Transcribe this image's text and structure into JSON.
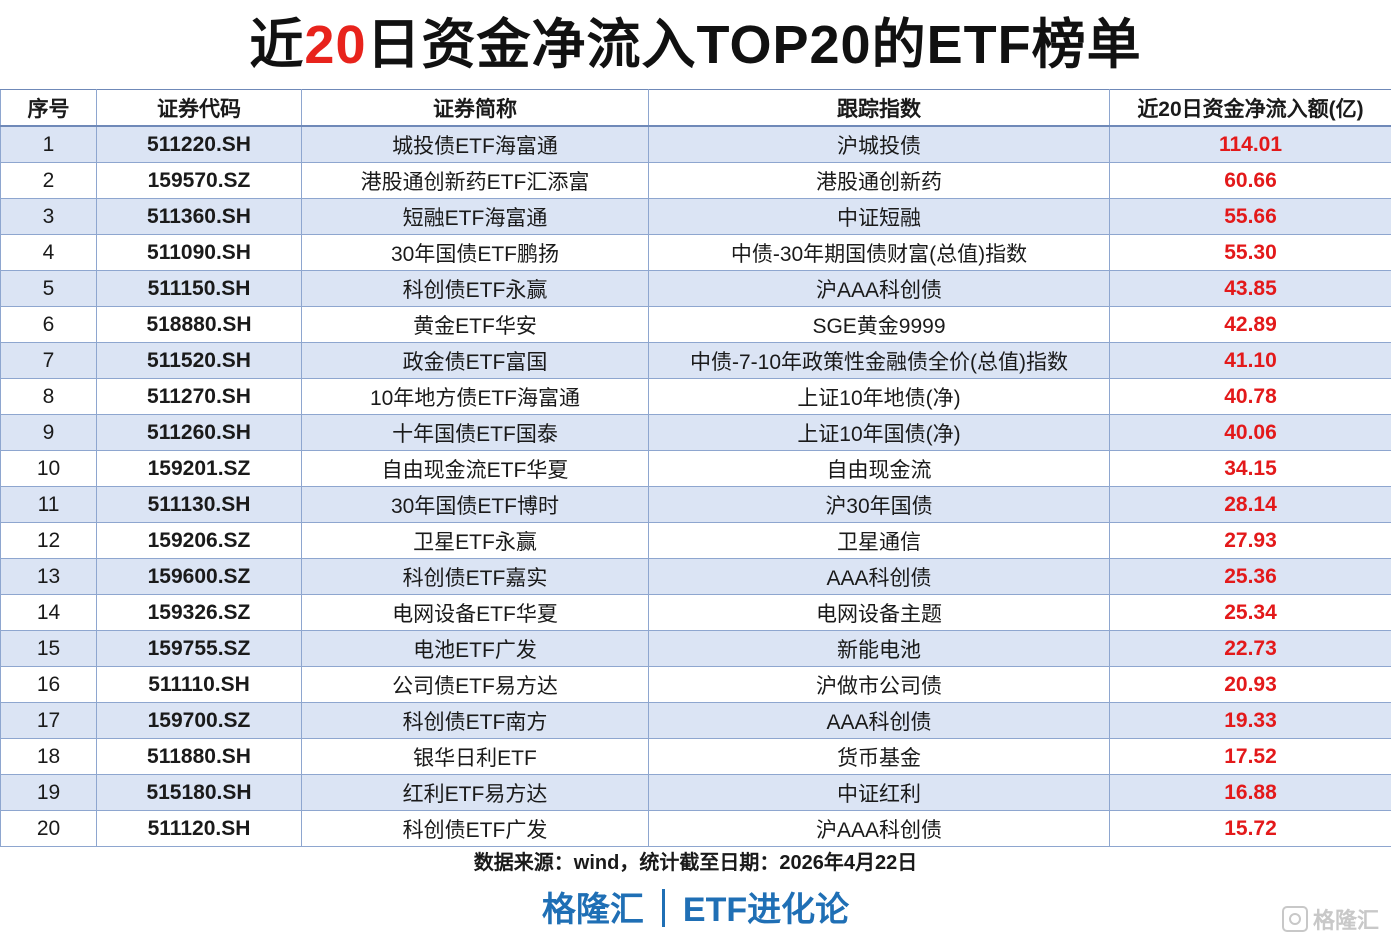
{
  "title": {
    "prefix": "近",
    "highlight": "20",
    "suffix": "日资金净流入TOP20的ETF榜单"
  },
  "table": {
    "headers": [
      "序号",
      "证券代码",
      "证券简称",
      "跟踪指数",
      "近20日资金净流入额(亿)"
    ],
    "rows": [
      [
        "1",
        "511220.SH",
        "城投债ETF海富通",
        "沪城投债",
        "114.01"
      ],
      [
        "2",
        "159570.SZ",
        "港股通创新药ETF汇添富",
        "港股通创新药",
        "60.66"
      ],
      [
        "3",
        "511360.SH",
        "短融ETF海富通",
        "中证短融",
        "55.66"
      ],
      [
        "4",
        "511090.SH",
        "30年国债ETF鹏扬",
        "中债-30年期国债财富(总值)指数",
        "55.30"
      ],
      [
        "5",
        "511150.SH",
        "科创债ETF永赢",
        "沪AAA科创债",
        "43.85"
      ],
      [
        "6",
        "518880.SH",
        "黄金ETF华安",
        "SGE黄金9999",
        "42.89"
      ],
      [
        "7",
        "511520.SH",
        "政金债ETF富国",
        "中债-7-10年政策性金融债全价(总值)指数",
        "41.10"
      ],
      [
        "8",
        "511270.SH",
        "10年地方债ETF海富通",
        "上证10年地债(净)",
        "40.78"
      ],
      [
        "9",
        "511260.SH",
        "十年国债ETF国泰",
        "上证10年国债(净)",
        "40.06"
      ],
      [
        "10",
        "159201.SZ",
        "自由现金流ETF华夏",
        "自由现金流",
        "34.15"
      ],
      [
        "11",
        "511130.SH",
        "30年国债ETF博时",
        "沪30年国债",
        "28.14"
      ],
      [
        "12",
        "159206.SZ",
        "卫星ETF永赢",
        "卫星通信",
        "27.93"
      ],
      [
        "13",
        "159600.SZ",
        "科创债ETF嘉实",
        "AAA科创债",
        "25.36"
      ],
      [
        "14",
        "159326.SZ",
        "电网设备ETF华夏",
        "电网设备主题",
        "25.34"
      ],
      [
        "15",
        "159755.SZ",
        "电池ETF广发",
        "新能电池",
        "22.73"
      ],
      [
        "16",
        "511110.SH",
        "公司债ETF易方达",
        "沪做市公司债",
        "20.93"
      ],
      [
        "17",
        "159700.SZ",
        "科创债ETF南方",
        "AAA科创债",
        "19.33"
      ],
      [
        "18",
        "511880.SH",
        "银华日利ETF",
        "货币基金",
        "17.52"
      ],
      [
        "19",
        "515180.SH",
        "红利ETF易方达",
        "中证红利",
        "16.88"
      ],
      [
        "20",
        "511120.SH",
        "科创债ETF广发",
        "沪AAA科创债",
        "15.72"
      ]
    ]
  },
  "source": "数据来源：wind，统计截至日期：2026年4月22日",
  "footer": {
    "left": "格隆汇",
    "right": "ETF进化论"
  },
  "watermark": "格隆汇",
  "colors": {
    "accent_red": "#e3191a",
    "brand_blue": "#1f6fb5",
    "stripe": "#dbe4f4"
  }
}
